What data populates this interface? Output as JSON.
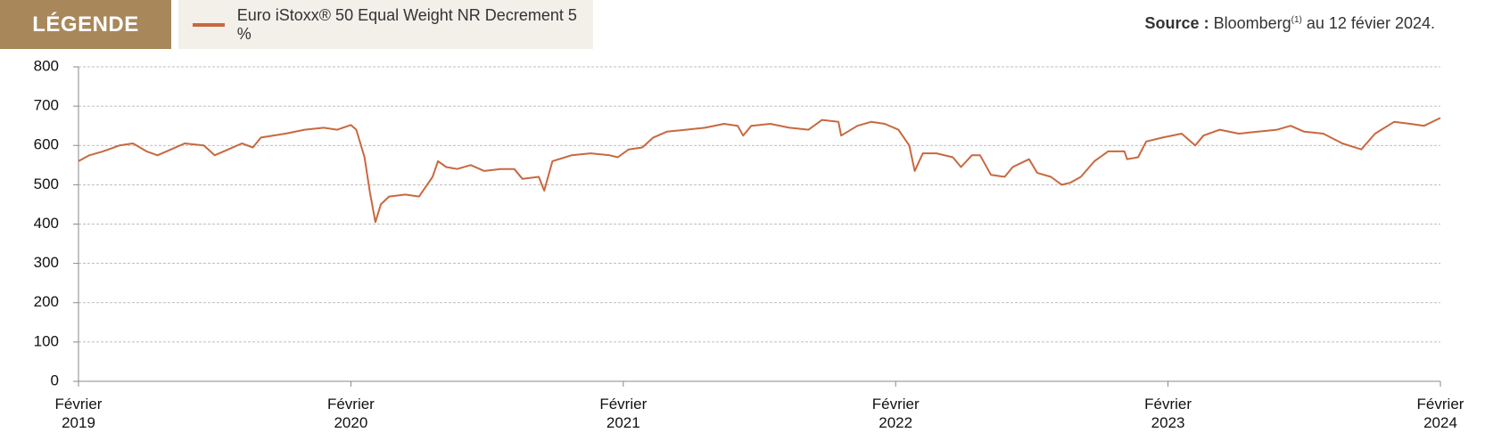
{
  "chart_data": {
    "type": "line",
    "legend_title": "LÉGENDE",
    "source": {
      "label": "Source :",
      "text": "Bloomberg",
      "note": "(1)",
      "rest": "au 12 févier 2024."
    },
    "x": [
      2019.08,
      2019.12,
      2019.17,
      2019.23,
      2019.28,
      2019.33,
      2019.37,
      2019.42,
      2019.47,
      2019.54,
      2019.58,
      2019.63,
      2019.68,
      2019.72,
      2019.75,
      2019.84,
      2019.91,
      2019.98,
      2020.03,
      2020.08,
      2020.1,
      2020.13,
      2020.15,
      2020.17,
      2020.19,
      2020.22,
      2020.28,
      2020.33,
      2020.35,
      2020.38,
      2020.4,
      2020.43,
      2020.47,
      2020.52,
      2020.57,
      2020.63,
      2020.68,
      2020.71,
      2020.77,
      2020.79,
      2020.82,
      2020.89,
      2020.96,
      2021.03,
      2021.06,
      2021.1,
      2021.15,
      2021.19,
      2021.24,
      2021.31,
      2021.38,
      2021.45,
      2021.5,
      2021.52,
      2021.55,
      2021.62,
      2021.69,
      2021.76,
      2021.81,
      2021.87,
      2021.88,
      2021.94,
      2021.99,
      2022.04,
      2022.09,
      2022.13,
      2022.15,
      2022.18,
      2022.23,
      2022.29,
      2022.32,
      2022.36,
      2022.39,
      2022.43,
      2022.48,
      2022.51,
      2022.57,
      2022.6,
      2022.65,
      2022.69,
      2022.72,
      2022.76,
      2022.81,
      2022.86,
      2022.92,
      2022.93,
      2022.97,
      2023.0,
      2023.06,
      2023.13,
      2023.18,
      2023.21,
      2023.27,
      2023.34,
      2023.41,
      2023.48,
      2023.53,
      2023.58,
      2023.65,
      2023.72,
      2023.79,
      2023.84,
      2023.91,
      2023.97,
      2024.02,
      2024.08
    ],
    "series": [
      {
        "name": "Euro iStoxx® 50 Equal Weight NR Decrement 5 %",
        "color": "#c8683f",
        "values": [
          560,
          575,
          585,
          600,
          605,
          585,
          575,
          590,
          605,
          600,
          575,
          590,
          605,
          595,
          620,
          630,
          640,
          645,
          640,
          652,
          640,
          570,
          480,
          405,
          450,
          470,
          475,
          470,
          490,
          520,
          560,
          545,
          540,
          550,
          535,
          540,
          540,
          515,
          520,
          485,
          560,
          575,
          580,
          575,
          570,
          590,
          595,
          620,
          635,
          640,
          645,
          655,
          650,
          625,
          650,
          655,
          645,
          640,
          665,
          660,
          625,
          650,
          660,
          655,
          640,
          600,
          535,
          580,
          580,
          570,
          545,
          575,
          575,
          525,
          520,
          545,
          565,
          530,
          520,
          500,
          505,
          520,
          560,
          585,
          585,
          565,
          570,
          610,
          620,
          630,
          600,
          625,
          640,
          630,
          635,
          640,
          650,
          635,
          630,
          605,
          590,
          630,
          660,
          655,
          650,
          670
        ]
      }
    ],
    "xlim": [
      2019.08,
      2024.08
    ],
    "xticks": [
      {
        "value": 2019.08,
        "label": "Février 2019"
      },
      {
        "value": 2020.08,
        "label": "Février 2020"
      },
      {
        "value": 2021.08,
        "label": "Février 2021"
      },
      {
        "value": 2022.08,
        "label": "Février 2022"
      },
      {
        "value": 2023.08,
        "label": "Février 2023"
      },
      {
        "value": 2024.08,
        "label": "Février 2024"
      }
    ],
    "ylim": [
      0,
      800
    ],
    "yticks": [
      0,
      100,
      200,
      300,
      400,
      500,
      600,
      700,
      800
    ],
    "grid": true
  }
}
